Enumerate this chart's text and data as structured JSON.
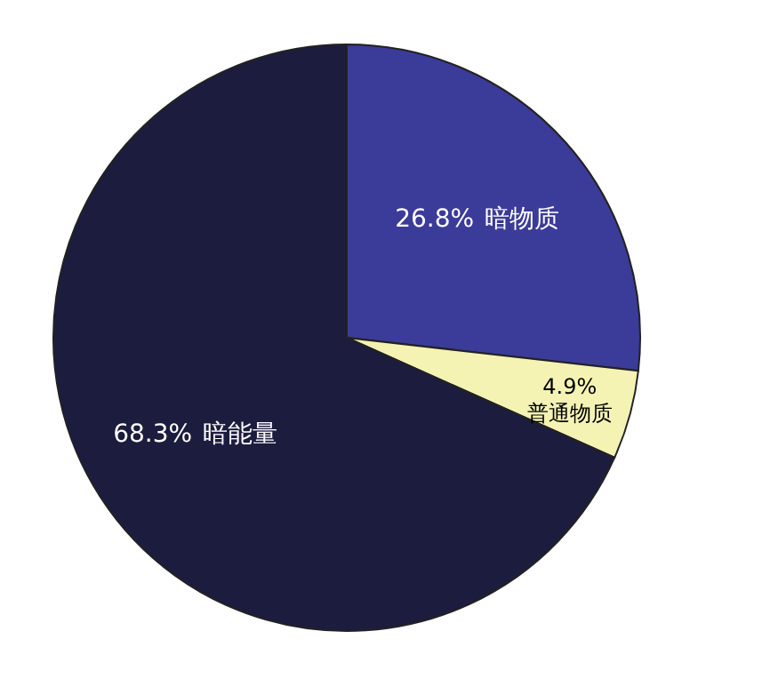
{
  "chart_data": {
    "type": "pie",
    "categories": [
      "暗物质",
      "普通物质",
      "暗能量"
    ],
    "values": [
      26.8,
      4.9,
      68.3
    ],
    "value_labels": [
      "26.8%",
      "4.9%",
      "68.3%"
    ],
    "colors": [
      "#3b3b9a",
      "#f4f3b4",
      "#1c1c3e"
    ]
  }
}
